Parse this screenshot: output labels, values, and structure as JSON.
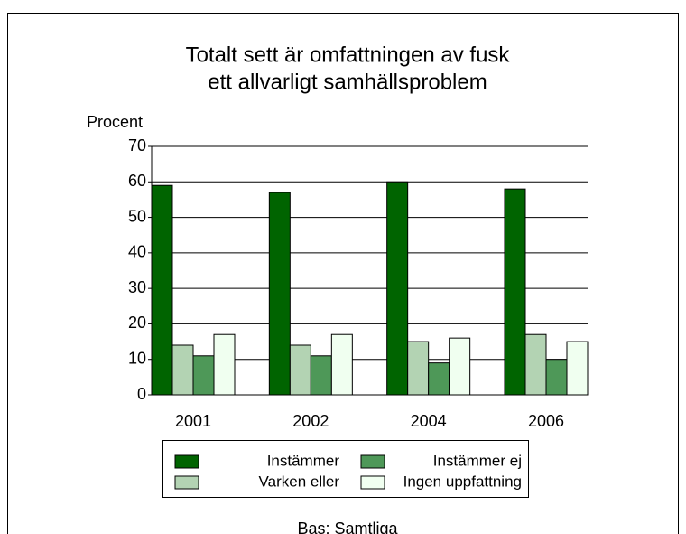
{
  "chart_data": {
    "type": "bar",
    "title": [
      "Totalt sett är omfattningen av fusk",
      "ett allvarligt samhällsproblem"
    ],
    "y_label": "Procent",
    "categories": [
      "2001",
      "2002",
      "2004",
      "2006"
    ],
    "series": [
      {
        "name": "Instämmer",
        "color": "#006400",
        "values": [
          59,
          57,
          60,
          58
        ]
      },
      {
        "name": "Varken eller",
        "color": "#b3d3b3",
        "values": [
          14,
          14,
          15,
          17
        ]
      },
      {
        "name": "Instämmer ej",
        "color": "#4e9858",
        "values": [
          11,
          11,
          9,
          10
        ]
      },
      {
        "name": "Ingen uppfattning",
        "color": "#f0fff0",
        "values": [
          17,
          17,
          16,
          15
        ]
      }
    ],
    "ylim": [
      0,
      70
    ],
    "yticks": [
      0,
      10,
      20,
      30,
      40,
      50,
      60,
      70
    ],
    "grid": true,
    "note": "Bas: Samtliga"
  }
}
